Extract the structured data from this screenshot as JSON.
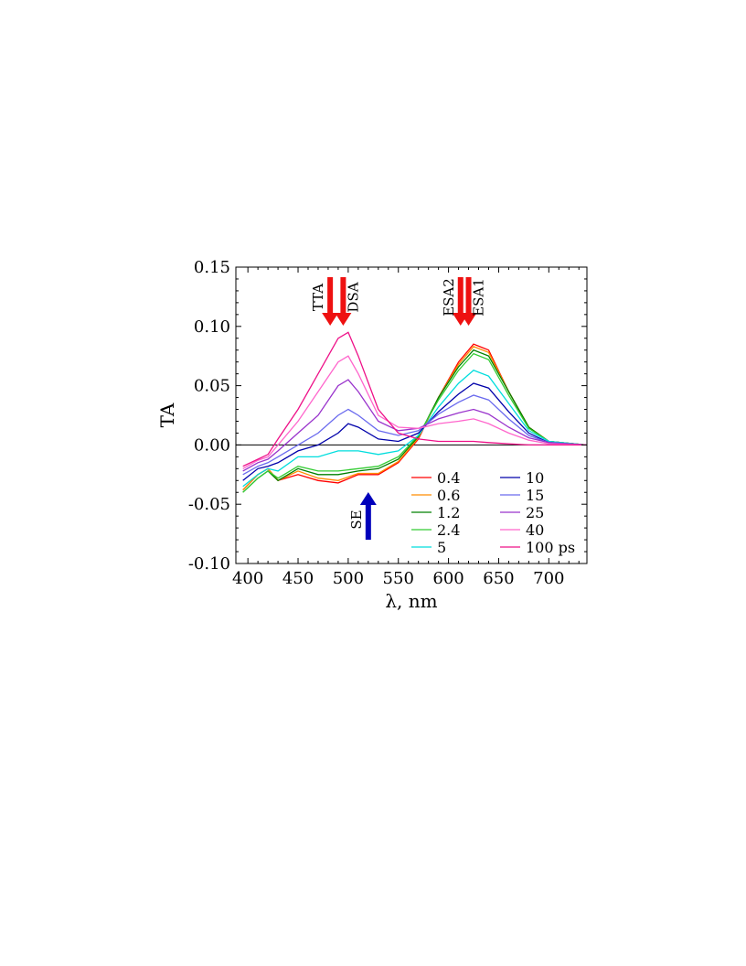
{
  "chart_data": {
    "type": "line",
    "xlabel": "λ, nm",
    "ylabel": "TA",
    "xlim": [
      388,
      738
    ],
    "ylim": [
      -0.1,
      0.15
    ],
    "x_ticks": [
      "400",
      "450",
      "500",
      "550",
      "600",
      "650",
      "700"
    ],
    "y_ticks": [
      "0.15",
      "0.10",
      "0.05",
      "0.00",
      "-0.05",
      "-0.10"
    ],
    "legend_position": "lower-right",
    "legend_unit": "ps",
    "zero_line": true,
    "series": [
      {
        "name": "0.4",
        "color": "#ff0000",
        "points": [
          [
            395,
            -0.038
          ],
          [
            410,
            -0.025
          ],
          [
            420,
            -0.02
          ],
          [
            430,
            -0.03
          ],
          [
            450,
            -0.025
          ],
          [
            470,
            -0.03
          ],
          [
            490,
            -0.032
          ],
          [
            510,
            -0.025
          ],
          [
            530,
            -0.025
          ],
          [
            550,
            -0.015
          ],
          [
            570,
            0.005
          ],
          [
            590,
            0.04
          ],
          [
            610,
            0.07
          ],
          [
            625,
            0.085
          ],
          [
            640,
            0.08
          ],
          [
            660,
            0.045
          ],
          [
            680,
            0.015
          ],
          [
            700,
            0.003
          ],
          [
            737,
            0.0
          ]
        ]
      },
      {
        "name": "0.6",
        "color": "#ff8c00",
        "points": [
          [
            395,
            -0.038
          ],
          [
            410,
            -0.025
          ],
          [
            420,
            -0.02
          ],
          [
            430,
            -0.03
          ],
          [
            450,
            -0.022
          ],
          [
            470,
            -0.028
          ],
          [
            490,
            -0.03
          ],
          [
            510,
            -0.024
          ],
          [
            530,
            -0.024
          ],
          [
            550,
            -0.014
          ],
          [
            570,
            0.006
          ],
          [
            590,
            0.04
          ],
          [
            610,
            0.068
          ],
          [
            625,
            0.083
          ],
          [
            640,
            0.078
          ],
          [
            660,
            0.045
          ],
          [
            680,
            0.015
          ],
          [
            700,
            0.003
          ],
          [
            737,
            0.0
          ]
        ]
      },
      {
        "name": "1.2",
        "color": "#008000",
        "points": [
          [
            395,
            -0.04
          ],
          [
            410,
            -0.028
          ],
          [
            420,
            -0.022
          ],
          [
            430,
            -0.03
          ],
          [
            450,
            -0.02
          ],
          [
            470,
            -0.025
          ],
          [
            490,
            -0.025
          ],
          [
            510,
            -0.022
          ],
          [
            530,
            -0.02
          ],
          [
            550,
            -0.012
          ],
          [
            570,
            0.007
          ],
          [
            590,
            0.04
          ],
          [
            610,
            0.066
          ],
          [
            625,
            0.08
          ],
          [
            640,
            0.075
          ],
          [
            660,
            0.045
          ],
          [
            680,
            0.015
          ],
          [
            700,
            0.003
          ],
          [
            737,
            0.0
          ]
        ]
      },
      {
        "name": "2.4",
        "color": "#33cc33",
        "points": [
          [
            395,
            -0.04
          ],
          [
            410,
            -0.028
          ],
          [
            420,
            -0.022
          ],
          [
            430,
            -0.028
          ],
          [
            450,
            -0.018
          ],
          [
            470,
            -0.022
          ],
          [
            490,
            -0.022
          ],
          [
            510,
            -0.02
          ],
          [
            530,
            -0.018
          ],
          [
            550,
            -0.01
          ],
          [
            570,
            0.008
          ],
          [
            590,
            0.038
          ],
          [
            610,
            0.063
          ],
          [
            625,
            0.077
          ],
          [
            640,
            0.072
          ],
          [
            660,
            0.042
          ],
          [
            680,
            0.014
          ],
          [
            700,
            0.003
          ],
          [
            737,
            0.0
          ]
        ]
      },
      {
        "name": "5",
        "color": "#00dddd",
        "points": [
          [
            395,
            -0.035
          ],
          [
            410,
            -0.025
          ],
          [
            420,
            -0.02
          ],
          [
            430,
            -0.022
          ],
          [
            450,
            -0.01
          ],
          [
            470,
            -0.01
          ],
          [
            490,
            -0.005
          ],
          [
            510,
            -0.005
          ],
          [
            530,
            -0.008
          ],
          [
            550,
            -0.005
          ],
          [
            570,
            0.008
          ],
          [
            590,
            0.032
          ],
          [
            610,
            0.052
          ],
          [
            625,
            0.063
          ],
          [
            640,
            0.058
          ],
          [
            660,
            0.035
          ],
          [
            680,
            0.012
          ],
          [
            700,
            0.003
          ],
          [
            737,
            0.0
          ]
        ]
      },
      {
        "name": "10",
        "color": "#0000aa",
        "points": [
          [
            395,
            -0.03
          ],
          [
            410,
            -0.02
          ],
          [
            420,
            -0.018
          ],
          [
            430,
            -0.015
          ],
          [
            450,
            -0.005
          ],
          [
            470,
            0.0
          ],
          [
            490,
            0.01
          ],
          [
            500,
            0.018
          ],
          [
            510,
            0.015
          ],
          [
            530,
            0.005
          ],
          [
            550,
            0.003
          ],
          [
            570,
            0.01
          ],
          [
            590,
            0.028
          ],
          [
            610,
            0.043
          ],
          [
            625,
            0.052
          ],
          [
            640,
            0.048
          ],
          [
            660,
            0.028
          ],
          [
            680,
            0.01
          ],
          [
            700,
            0.002
          ],
          [
            737,
            0.0
          ]
        ]
      },
      {
        "name": "15",
        "color": "#6a6aee",
        "points": [
          [
            395,
            -0.025
          ],
          [
            410,
            -0.018
          ],
          [
            420,
            -0.015
          ],
          [
            430,
            -0.01
          ],
          [
            450,
            0.0
          ],
          [
            470,
            0.01
          ],
          [
            490,
            0.025
          ],
          [
            500,
            0.03
          ],
          [
            510,
            0.025
          ],
          [
            530,
            0.012
          ],
          [
            550,
            0.008
          ],
          [
            570,
            0.012
          ],
          [
            590,
            0.026
          ],
          [
            610,
            0.036
          ],
          [
            625,
            0.042
          ],
          [
            640,
            0.038
          ],
          [
            660,
            0.022
          ],
          [
            680,
            0.008
          ],
          [
            700,
            0.002
          ],
          [
            737,
            0.0
          ]
        ]
      },
      {
        "name": "25",
        "color": "#9933cc",
        "points": [
          [
            395,
            -0.022
          ],
          [
            410,
            -0.015
          ],
          [
            420,
            -0.012
          ],
          [
            430,
            -0.005
          ],
          [
            450,
            0.01
          ],
          [
            470,
            0.025
          ],
          [
            490,
            0.05
          ],
          [
            500,
            0.055
          ],
          [
            510,
            0.045
          ],
          [
            530,
            0.02
          ],
          [
            550,
            0.012
          ],
          [
            570,
            0.014
          ],
          [
            590,
            0.022
          ],
          [
            610,
            0.027
          ],
          [
            625,
            0.03
          ],
          [
            640,
            0.026
          ],
          [
            660,
            0.015
          ],
          [
            680,
            0.006
          ],
          [
            700,
            0.002
          ],
          [
            737,
            0.0
          ]
        ]
      },
      {
        "name": "40",
        "color": "#ff66cc",
        "points": [
          [
            395,
            -0.02
          ],
          [
            410,
            -0.013
          ],
          [
            420,
            -0.01
          ],
          [
            430,
            0.0
          ],
          [
            450,
            0.02
          ],
          [
            470,
            0.045
          ],
          [
            490,
            0.07
          ],
          [
            500,
            0.075
          ],
          [
            510,
            0.06
          ],
          [
            530,
            0.025
          ],
          [
            550,
            0.015
          ],
          [
            570,
            0.014
          ],
          [
            590,
            0.018
          ],
          [
            610,
            0.02
          ],
          [
            625,
            0.022
          ],
          [
            640,
            0.018
          ],
          [
            660,
            0.01
          ],
          [
            680,
            0.004
          ],
          [
            700,
            0.001
          ],
          [
            737,
            0.0
          ]
        ]
      },
      {
        "name": "100",
        "color": "#ee1188",
        "points": [
          [
            395,
            -0.018
          ],
          [
            410,
            -0.012
          ],
          [
            420,
            -0.008
          ],
          [
            430,
            0.005
          ],
          [
            450,
            0.03
          ],
          [
            470,
            0.06
          ],
          [
            490,
            0.09
          ],
          [
            500,
            0.095
          ],
          [
            510,
            0.075
          ],
          [
            530,
            0.03
          ],
          [
            550,
            0.01
          ],
          [
            570,
            0.005
          ],
          [
            590,
            0.003
          ],
          [
            610,
            0.003
          ],
          [
            625,
            0.003
          ],
          [
            640,
            0.002
          ],
          [
            660,
            0.001
          ],
          [
            680,
            0.0
          ],
          [
            700,
            0.0
          ],
          [
            737,
            0.0
          ]
        ]
      }
    ],
    "annotations": [
      {
        "label": "TTA",
        "x": 482,
        "direction": "down",
        "color": "#ee1111",
        "text_side": "left"
      },
      {
        "label": "DSA",
        "x": 495,
        "direction": "down",
        "color": "#ee1111",
        "text_side": "right"
      },
      {
        "label": "ESA2",
        "x": 612,
        "direction": "down",
        "color": "#ee1111",
        "text_side": "left"
      },
      {
        "label": "ESA1",
        "x": 620,
        "direction": "down",
        "color": "#ee1111",
        "text_side": "right"
      },
      {
        "label": "SE",
        "x": 520,
        "direction": "up",
        "color": "#0000bb",
        "text_side": "left"
      }
    ]
  }
}
